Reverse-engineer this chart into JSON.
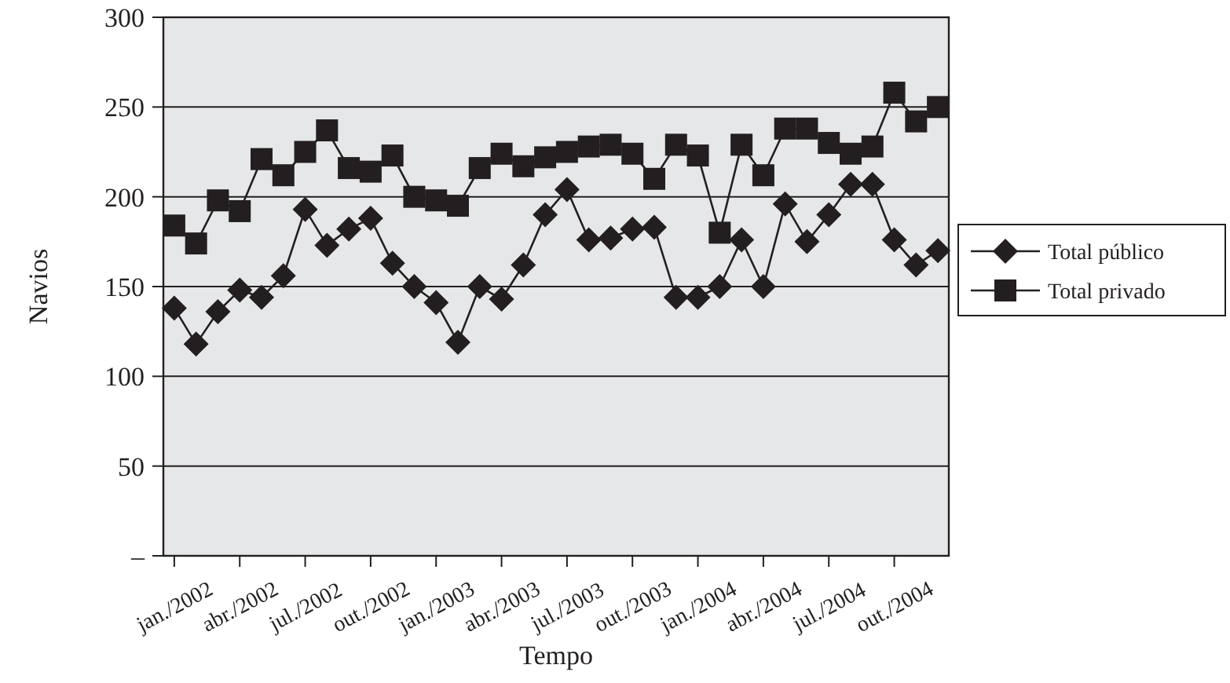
{
  "chart_data": {
    "type": "line",
    "xlabel": "Tempo",
    "ylabel": "Navios",
    "categories": [
      "jan./2002",
      null,
      null,
      "abr./2002",
      null,
      null,
      "jul./2002",
      null,
      null,
      "out./2002",
      null,
      null,
      "jan./2003",
      null,
      null,
      "abr./2003",
      null,
      null,
      "jul./2003",
      null,
      null,
      "out./2003",
      null,
      null,
      "jan./2004",
      null,
      null,
      "abr./2004",
      null,
      null,
      "jul./2004",
      null,
      null,
      "out./2004",
      null,
      null
    ],
    "series": [
      {
        "name": "Total público",
        "color": "#231f20",
        "marker": "diamond",
        "values": [
          138,
          118,
          136,
          148,
          144,
          156,
          193,
          173,
          182,
          188,
          163,
          150,
          141,
          119,
          150,
          143,
          162,
          190,
          204,
          176,
          177,
          182,
          183,
          144,
          144,
          150,
          176,
          150,
          196,
          175,
          190,
          207,
          207,
          176,
          162,
          170
        ]
      },
      {
        "name": "Total privado",
        "color": "#231f20",
        "marker": "square",
        "values": [
          184,
          174,
          198,
          192,
          221,
          212,
          225,
          237,
          216,
          214,
          223,
          200,
          198,
          195,
          216,
          224,
          217,
          222,
          225,
          228,
          229,
          224,
          210,
          229,
          223,
          180,
          229,
          212,
          238,
          238,
          230,
          224,
          228,
          258,
          242,
          250
        ]
      }
    ],
    "ylim": [
      0,
      300
    ],
    "yticks": [
      {
        "value": 0,
        "label": "–"
      },
      50,
      100,
      150,
      200,
      250,
      300
    ],
    "grid": "y",
    "legend": "right"
  }
}
